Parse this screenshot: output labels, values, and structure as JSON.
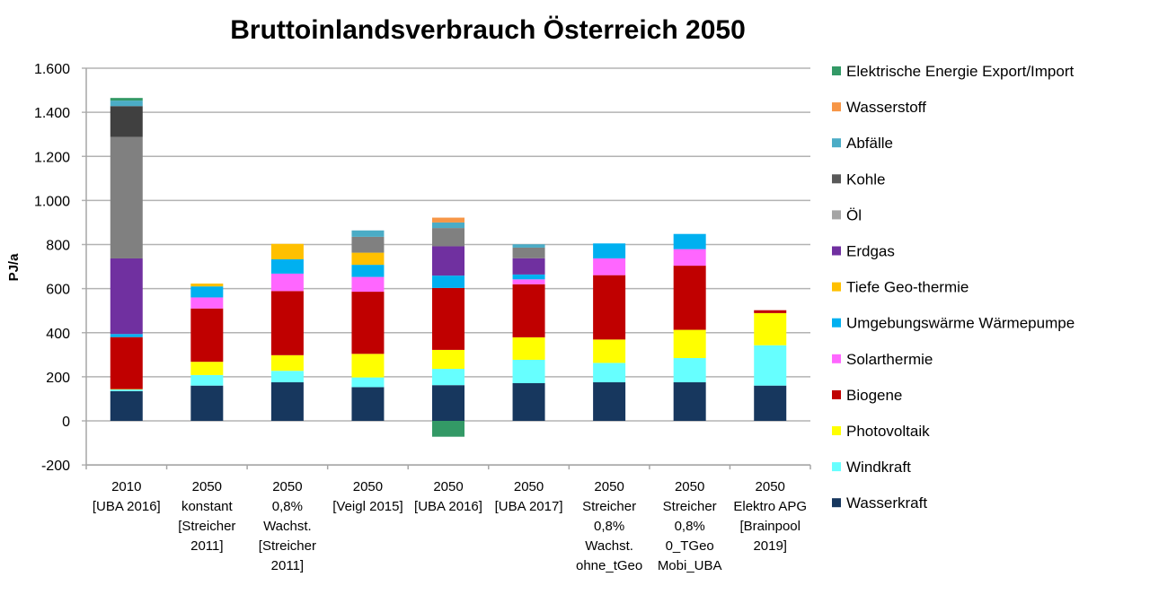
{
  "chart_data": {
    "type": "bar",
    "stacked": true,
    "title": "Bruttoinlandsverbrauch Österreich 2050",
    "xlabel": "",
    "ylabel": "PJ/a",
    "ylim": [
      -200,
      1600
    ],
    "yticks": [
      -200,
      0,
      200,
      400,
      600,
      800,
      1000,
      1200,
      1400,
      1600
    ],
    "ytick_labels": [
      "-200",
      "0",
      "200",
      "400",
      "600",
      "800",
      "1.000",
      "1.200",
      "1.400",
      "1.600"
    ],
    "grid": true,
    "legend_position": "right",
    "categories": [
      [
        "2010",
        "[UBA 2016]"
      ],
      [
        "2050",
        "konstant",
        "[Streicher",
        "2011]"
      ],
      [
        "2050",
        "0,8%",
        "Wachst.",
        "[Streicher",
        "2011]"
      ],
      [
        "2050",
        "[Veigl 2015]"
      ],
      [
        "2050",
        "[UBA 2016]"
      ],
      [
        "2050",
        "[UBA 2017]"
      ],
      [
        "2050",
        "Streicher",
        "0,8%",
        "Wachst.",
        "ohne_tGeo"
      ],
      [
        "2050",
        "Streicher",
        "0,8%",
        "0_TGeo",
        "Mobi_UBA"
      ],
      [
        "2050",
        "Elektro APG",
        "[Brainpool",
        "2019]"
      ]
    ],
    "series": [
      {
        "name": "Wasserkraft",
        "color": "#17375e",
        "values": [
          135,
          160,
          175,
          153,
          162,
          171,
          175,
          175,
          160
        ]
      },
      {
        "name": "Windkraft",
        "color": "#66ffff",
        "values": [
          8,
          48,
          52,
          44,
          74,
          106,
          88,
          110,
          183
        ]
      },
      {
        "name": "Photovoltaik",
        "color": "#ffff00",
        "values": [
          1,
          60,
          71,
          107,
          86,
          102,
          106,
          128,
          146
        ]
      },
      {
        "name": "Biogene",
        "color": "#c00000",
        "values": [
          236,
          242,
          291,
          282,
          281,
          241,
          292,
          291,
          13
        ]
      },
      {
        "name": "Solarthermie",
        "color": "#ff66ff",
        "values": [
          0,
          50,
          79,
          67,
          0,
          22,
          76,
          75,
          0
        ]
      },
      {
        "name": "Umgebungswärme Wärmepumpe",
        "color": "#00b0f0",
        "values": [
          14,
          50,
          65,
          55,
          56,
          22,
          68,
          69,
          0
        ]
      },
      {
        "name": "Tiefe Geo-thermie",
        "color": "#ffc000",
        "values": [
          0,
          13,
          70,
          55,
          0,
          0,
          0,
          0,
          0
        ]
      },
      {
        "name": "Erdgas",
        "color": "#7030a0",
        "values": [
          343,
          0,
          0,
          0,
          133,
          74,
          0,
          0,
          0
        ]
      },
      {
        "name": "Öl",
        "color": "#808080",
        "values": [
          551,
          0,
          0,
          72,
          83,
          48,
          0,
          0,
          0
        ]
      },
      {
        "name": "Kohle",
        "color": "#404040",
        "values": [
          140,
          0,
          0,
          0,
          0,
          0,
          0,
          0,
          0
        ]
      },
      {
        "name": "Abfälle",
        "color": "#4bacc6",
        "values": [
          25,
          0,
          0,
          29,
          25,
          15,
          0,
          0,
          0
        ]
      },
      {
        "name": "Wasserstoff",
        "color": "#f79646",
        "values": [
          0,
          0,
          0,
          0,
          22,
          0,
          0,
          0,
          0
        ]
      },
      {
        "name": "Elektrische Energie Export/Import",
        "color": "#339966",
        "values": [
          12,
          0,
          0,
          0,
          -72,
          0,
          0,
          0,
          0
        ]
      }
    ],
    "legend_order": [
      "Elektrische Energie Export/Import",
      "Wasserstoff",
      "Abfälle",
      "Kohle",
      "Öl",
      "Erdgas",
      "Tiefe Geo-thermie",
      "Umgebungswärme Wärmepumpe",
      "Solarthermie",
      "Biogene",
      "Photovoltaik",
      "Windkraft",
      "Wasserkraft"
    ],
    "legend_colors": {
      "Öl": "#a5a5a5",
      "Kohle": "#595959"
    }
  }
}
